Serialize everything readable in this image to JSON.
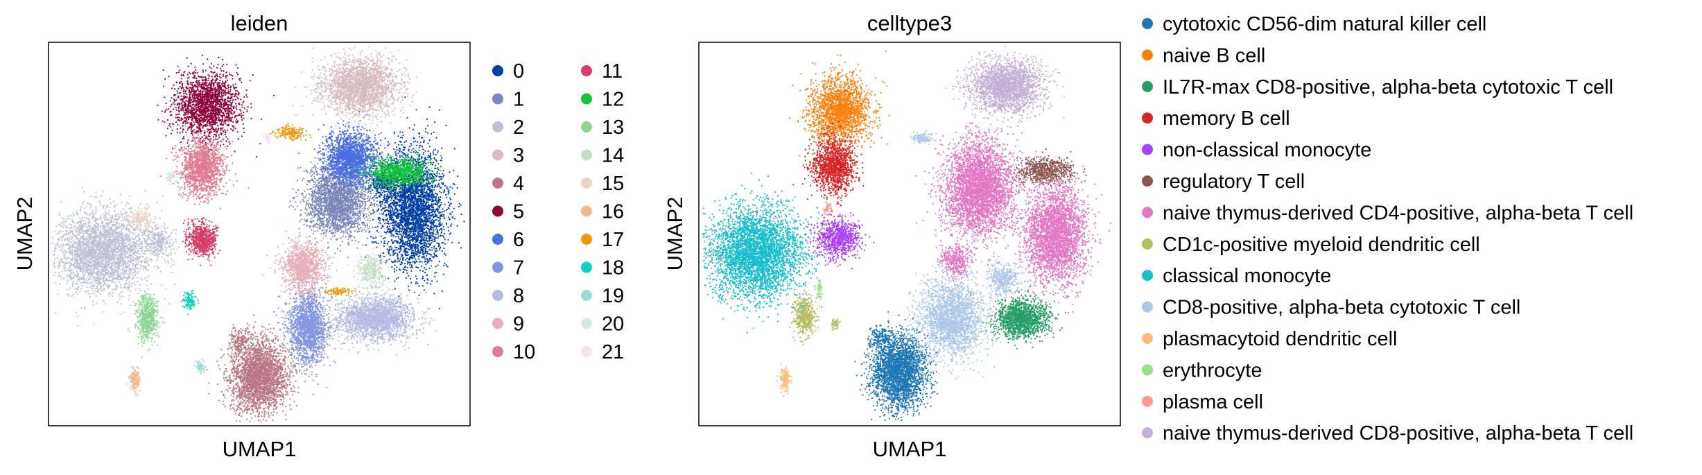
{
  "chart_data": [
    {
      "type": "scatter",
      "title": "leiden",
      "xlabel": "UMAP1",
      "ylabel": "UMAP2",
      "legend_position": "right, two columns",
      "ticks": "none",
      "clusters": [
        {
          "name": "0",
          "color": "#023fa5",
          "blobs": [
            [
              0.865,
              0.435,
              0.09,
              0.18,
              3400
            ],
            [
              0.795,
              0.36,
              0.04,
              0.05,
              300
            ]
          ]
        },
        {
          "name": "1",
          "color": "#7d87b9",
          "blobs": [
            [
              0.685,
              0.415,
              0.085,
              0.105,
              2400
            ]
          ]
        },
        {
          "name": "2",
          "color": "#bec1d4",
          "blobs": [
            [
              0.13,
              0.545,
              0.125,
              0.12,
              3200
            ],
            [
              0.26,
              0.52,
              0.04,
              0.05,
              300
            ]
          ]
        },
        {
          "name": "3",
          "color": "#d6bcc0",
          "blobs": [
            [
              0.74,
              0.115,
              0.105,
              0.085,
              2500
            ]
          ]
        },
        {
          "name": "4",
          "color": "#bb7784",
          "blobs": [
            [
              0.5,
              0.87,
              0.08,
              0.11,
              2800
            ],
            [
              0.455,
              0.78,
              0.03,
              0.04,
              200
            ]
          ]
        },
        {
          "name": "5",
          "color": "#8e063b",
          "blobs": [
            [
              0.375,
              0.165,
              0.09,
              0.1,
              2000
            ]
          ]
        },
        {
          "name": "6",
          "color": "#4a6fe3",
          "blobs": [
            [
              0.715,
              0.3,
              0.07,
              0.08,
              1900
            ]
          ]
        },
        {
          "name": "7",
          "color": "#8595e1",
          "blobs": [
            [
              0.615,
              0.745,
              0.055,
              0.11,
              1800
            ]
          ]
        },
        {
          "name": "8",
          "color": "#b5bbe3",
          "blobs": [
            [
              0.775,
              0.72,
              0.105,
              0.065,
              2200
            ]
          ]
        },
        {
          "name": "9",
          "color": "#e6afb9",
          "blobs": [
            [
              0.605,
              0.585,
              0.055,
              0.075,
              1200
            ]
          ]
        },
        {
          "name": "10",
          "color": "#e07b91",
          "blobs": [
            [
              0.365,
              0.325,
              0.06,
              0.085,
              1500
            ]
          ]
        },
        {
          "name": "11",
          "color": "#d33f6a",
          "blobs": [
            [
              0.365,
              0.515,
              0.04,
              0.05,
              800
            ]
          ]
        },
        {
          "name": "12",
          "color": "#11c638",
          "blobs": [
            [
              0.83,
              0.34,
              0.085,
              0.045,
              900
            ]
          ]
        },
        {
          "name": "13",
          "color": "#8dd593",
          "blobs": [
            [
              0.235,
              0.72,
              0.03,
              0.07,
              600
            ]
          ]
        },
        {
          "name": "14",
          "color": "#c6dec7",
          "blobs": [
            [
              0.765,
              0.595,
              0.04,
              0.05,
              350
            ]
          ]
        },
        {
          "name": "15",
          "color": "#ead3c6",
          "blobs": [
            [
              0.215,
              0.46,
              0.03,
              0.03,
              180
            ]
          ]
        },
        {
          "name": "16",
          "color": "#f0b98d",
          "blobs": [
            [
              0.205,
              0.88,
              0.015,
              0.04,
              150
            ]
          ]
        },
        {
          "name": "17",
          "color": "#ef9708",
          "blobs": [
            [
              0.575,
              0.235,
              0.045,
              0.02,
              180
            ],
            [
              0.685,
              0.65,
              0.04,
              0.012,
              100
            ]
          ]
        },
        {
          "name": "18",
          "color": "#0fcfc0",
          "blobs": [
            [
              0.335,
              0.675,
              0.018,
              0.028,
              120
            ]
          ]
        },
        {
          "name": "19",
          "color": "#9cded6",
          "blobs": [
            [
              0.36,
              0.845,
              0.012,
              0.02,
              60
            ]
          ]
        },
        {
          "name": "20",
          "color": "#d5eae7",
          "blobs": [
            [
              0.29,
              0.35,
              0.012,
              0.02,
              60
            ]
          ]
        },
        {
          "name": "21",
          "color": "#f3e1eb",
          "blobs": [
            [
              0.52,
              0.25,
              0.012,
              0.015,
              40
            ]
          ]
        }
      ]
    },
    {
      "type": "scatter",
      "title": "celltype3",
      "xlabel": "UMAP1",
      "ylabel": "UMAP2",
      "legend_position": "right, one column",
      "ticks": "none",
      "clusters": [
        {
          "name": "cytotoxic CD56-dim natural killer cell",
          "color": "#1f77b4",
          "blobs": [
            [
              0.475,
              0.86,
              0.075,
              0.11,
              2800
            ],
            [
              0.43,
              0.77,
              0.03,
              0.03,
              150
            ]
          ]
        },
        {
          "name": "naive B cell",
          "color": "#ff7f0e",
          "blobs": [
            [
              0.335,
              0.175,
              0.085,
              0.1,
              2000
            ]
          ]
        },
        {
          "name": "IL7R-max CD8-positive, alpha-beta cytotoxic T cell",
          "color": "#279e68",
          "blobs": [
            [
              0.765,
              0.72,
              0.075,
              0.06,
              1500
            ]
          ]
        },
        {
          "name": "memory B cell",
          "color": "#d62728",
          "blobs": [
            [
              0.32,
              0.32,
              0.06,
              0.085,
              1400
            ]
          ]
        },
        {
          "name": "non-classical monocyte",
          "color": "#aa40fc",
          "blobs": [
            [
              0.33,
              0.51,
              0.06,
              0.06,
              900
            ]
          ]
        },
        {
          "name": "regulatory T cell",
          "color": "#8c564b",
          "blobs": [
            [
              0.82,
              0.335,
              0.08,
              0.04,
              700
            ]
          ]
        },
        {
          "name": "naive thymus-derived CD4-positive, alpha-beta T cell",
          "color": "#e377c2",
          "blobs": [
            [
              0.665,
              0.38,
              0.095,
              0.14,
              3800
            ],
            [
              0.845,
              0.5,
              0.085,
              0.145,
              3200
            ],
            [
              0.61,
              0.57,
              0.04,
              0.05,
              400
            ]
          ]
        },
        {
          "name": "CD1c-positive myeloid dendritic cell",
          "color": "#b5bd61",
          "blobs": [
            [
              0.25,
              0.715,
              0.03,
              0.06,
              500
            ],
            [
              0.325,
              0.735,
              0.012,
              0.02,
              50
            ]
          ]
        },
        {
          "name": "classical monocyte",
          "color": "#17becf",
          "blobs": [
            [
              0.135,
              0.55,
              0.125,
              0.14,
              4000
            ]
          ]
        },
        {
          "name": "CD8-positive, alpha-beta cytotoxic T cell",
          "color": "#aec7e8",
          "blobs": [
            [
              0.6,
              0.72,
              0.09,
              0.12,
              2400
            ],
            [
              0.72,
              0.62,
              0.04,
              0.05,
              400
            ],
            [
              0.53,
              0.25,
              0.03,
              0.02,
              120
            ]
          ]
        },
        {
          "name": "plasmacytoid dendritic cell",
          "color": "#ffbb78",
          "blobs": [
            [
              0.205,
              0.88,
              0.015,
              0.04,
              150
            ]
          ]
        },
        {
          "name": "erythrocyte",
          "color": "#98df8a",
          "blobs": [
            [
              0.285,
              0.645,
              0.01,
              0.03,
              60
            ]
          ]
        },
        {
          "name": "plasma cell",
          "color": "#ff9896",
          "blobs": [
            [
              0.305,
              0.435,
              0.012,
              0.02,
              50
            ]
          ]
        },
        {
          "name": "naive thymus-derived CD8-positive, alpha-beta T cell",
          "color": "#c5b0d5",
          "blobs": [
            [
              0.73,
              0.115,
              0.1,
              0.08,
              2300
            ]
          ]
        }
      ]
    }
  ]
}
